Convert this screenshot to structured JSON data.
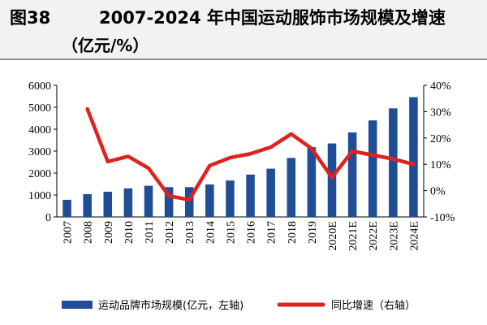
{
  "figure": {
    "number": "图38",
    "title": "2007-2024 年中国运动服饰市场规模及增速",
    "unit": "（亿元/%）"
  },
  "chart_data": {
    "type": "bar+line",
    "categories": [
      "2007",
      "2008",
      "2009",
      "2010",
      "2011",
      "2012",
      "2013",
      "2014",
      "2015",
      "2016",
      "2017",
      "2018",
      "2019",
      "2020E",
      "2021E",
      "2022E",
      "2023E",
      "2024E"
    ],
    "series": [
      {
        "name": "运动品牌市场规模(亿元，左轴)",
        "type": "bar",
        "axis": "left",
        "color": "#1f4e96",
        "values": [
          780,
          1040,
          1150,
          1300,
          1420,
          1360,
          1360,
          1480,
          1660,
          1930,
          2200,
          2690,
          3180,
          3350,
          3850,
          4400,
          4950,
          5460
        ]
      },
      {
        "name": "同比增速（右轴）",
        "type": "line",
        "axis": "right",
        "color": "#e0221d",
        "values": [
          null,
          31,
          11,
          13,
          8.5,
          -2,
          -3.5,
          9.5,
          12.5,
          14,
          16.5,
          21.5,
          16,
          5,
          15,
          13.5,
          12,
          10
        ]
      }
    ],
    "yleft": {
      "min": 0,
      "max": 6000,
      "step": 1000,
      "ticks": [
        "0",
        "1000",
        "2000",
        "3000",
        "4000",
        "5000",
        "6000"
      ]
    },
    "yright": {
      "min": -10,
      "max": 40,
      "step": 10,
      "ticks": [
        "-10%",
        "0%",
        "10%",
        "20%",
        "30%",
        "40%"
      ]
    },
    "legend_position": "bottom",
    "grid": false
  }
}
